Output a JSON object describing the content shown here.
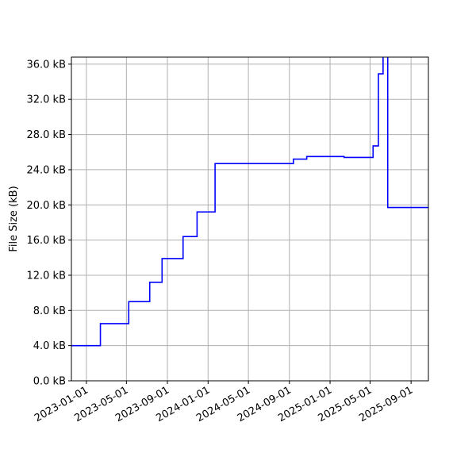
{
  "chart_data": {
    "type": "line",
    "step": "post",
    "title": "",
    "xlabel": "",
    "ylabel": "File Size (kB)",
    "xlim": [
      "2022-11-17",
      "2025-10-23"
    ],
    "ylim": [
      0,
      36.8
    ],
    "grid": true,
    "line_color": "#0000ff",
    "x_ticks": [
      "2023-01-01",
      "2023-05-01",
      "2023-09-01",
      "2024-01-01",
      "2024-05-01",
      "2024-09-01",
      "2025-01-01",
      "2025-05-01",
      "2025-09-01"
    ],
    "y_ticks": [
      0,
      4,
      8,
      12,
      16,
      20,
      24,
      28,
      32,
      36
    ],
    "y_tick_labels": [
      "0.0 kB",
      "4.0 kB",
      "8.0 kB",
      "12.0 kB",
      "16.0 kB",
      "20.0 kB",
      "24.0 kB",
      "28.0 kB",
      "32.0 kB",
      "36.0 kB"
    ],
    "series": [
      {
        "x": [
          "2022-11-17",
          "2023-02-12",
          "2023-05-08",
          "2023-07-10",
          "2023-08-16",
          "2023-10-18",
          "2023-11-29",
          "2024-01-22",
          "2024-09-13",
          "2024-10-23",
          "2025-02-12",
          "2025-05-10",
          "2025-05-26",
          "2025-06-09",
          "2025-06-23",
          "2025-10-23"
        ],
        "y": [
          4.0,
          6.5,
          9.0,
          11.2,
          13.9,
          16.4,
          19.2,
          24.7,
          25.2,
          25.5,
          25.4,
          26.7,
          34.9,
          38.0,
          19.7,
          19.7
        ]
      }
    ]
  }
}
